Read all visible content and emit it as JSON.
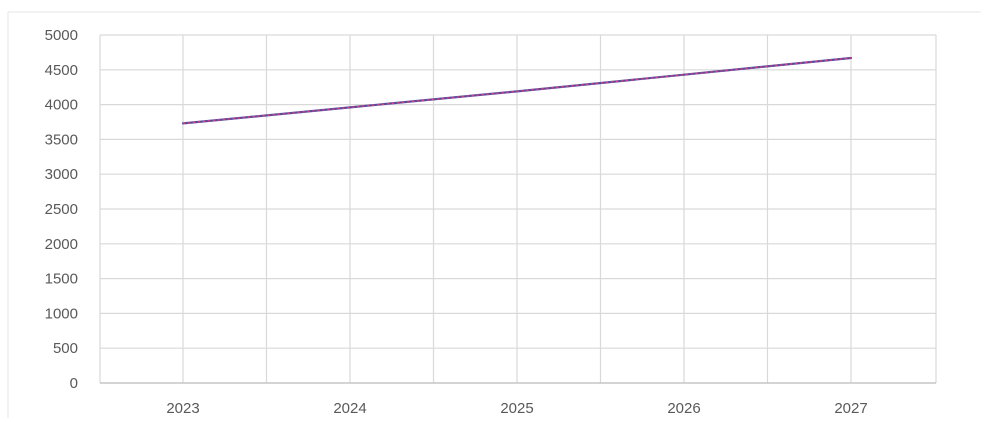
{
  "chart_data": {
    "type": "line",
    "x": [
      "2023",
      "2024",
      "2025",
      "2026",
      "2027"
    ],
    "series": [
      {
        "values": [
          3730,
          3960,
          4190,
          4430,
          4670
        ],
        "color": "#5b4a9e",
        "dash_color": "#e0407a"
      }
    ],
    "y_ticks": [
      "5000",
      "4500",
      "4000",
      "3500",
      "3000",
      "2500",
      "2000",
      "1500",
      "1000",
      "500",
      "0"
    ],
    "ylim": [
      0,
      5000
    ],
    "grid": true,
    "gridline_color": "#d9d9d9",
    "legend": false
  }
}
